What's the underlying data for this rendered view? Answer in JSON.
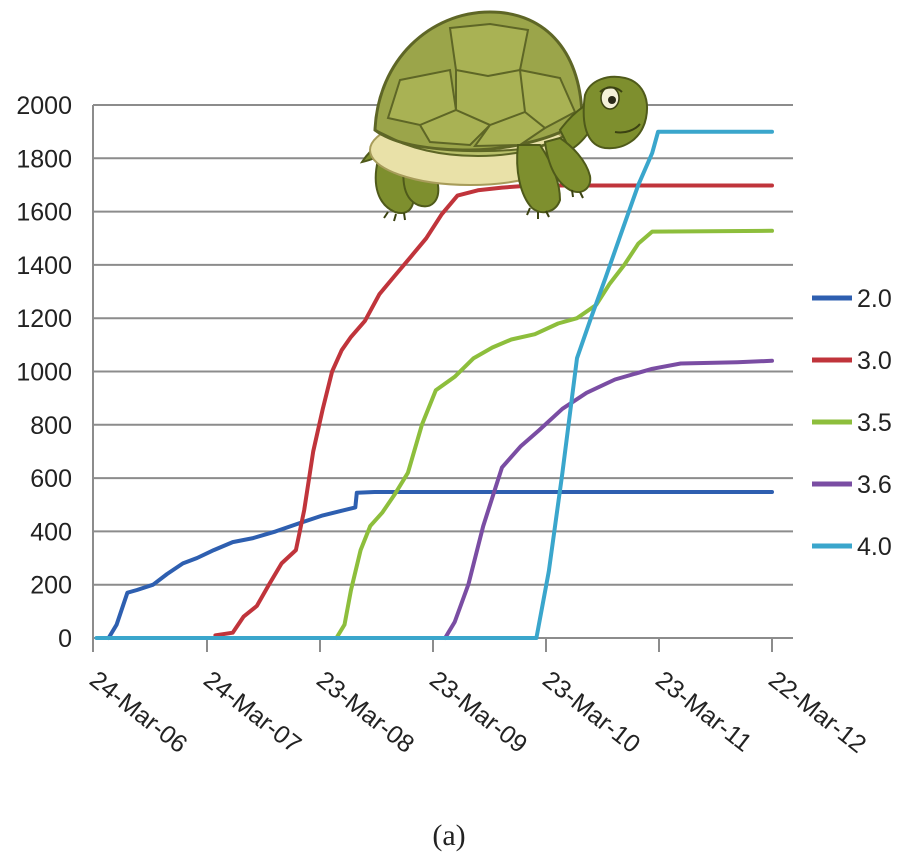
{
  "chart_data": {
    "type": "line",
    "title": "",
    "xlabel": "",
    "ylabel": "",
    "caption": "(a)",
    "ylim": [
      0,
      2000
    ],
    "y_ticks": [
      "0",
      "200",
      "400",
      "600",
      "800",
      "1000",
      "1200",
      "1400",
      "1600",
      "1800",
      "2000"
    ],
    "x_ticks": [
      "24-Mar-06",
      "24-Mar-07",
      "23-Mar-08",
      "23-Mar-09",
      "23-Mar-10",
      "23-Mar-11",
      "22-Mar-12"
    ],
    "grid": true,
    "legend_position": "right",
    "series": [
      {
        "name": "2.0",
        "color": "#2E5FB0",
        "points": [
          [
            "2006-05-10",
            0
          ],
          [
            "2006-06-05",
            50
          ],
          [
            "2006-07-10",
            170
          ],
          [
            "2006-08-10",
            180
          ],
          [
            "2006-10-01",
            200
          ],
          [
            "2006-11-15",
            240
          ],
          [
            "2007-01-05",
            280
          ],
          [
            "2007-02-20",
            300
          ],
          [
            "2007-04-15",
            330
          ],
          [
            "2007-06-15",
            360
          ],
          [
            "2007-08-20",
            375
          ],
          [
            "2007-11-01",
            400
          ],
          [
            "2008-01-15",
            430
          ],
          [
            "2008-04-01",
            460
          ],
          [
            "2008-06-10",
            480
          ],
          [
            "2008-07-15",
            490
          ],
          [
            "2008-07-20",
            545
          ],
          [
            "2008-09-15",
            548
          ],
          [
            "2012-03-22",
            548
          ]
        ]
      },
      {
        "name": "3.0",
        "color": "#C0343B",
        "points": [
          [
            "2007-04-20",
            10
          ],
          [
            "2007-06-15",
            20
          ],
          [
            "2007-07-20",
            80
          ],
          [
            "2007-09-01",
            120
          ],
          [
            "2007-10-10",
            200
          ],
          [
            "2007-11-20",
            280
          ],
          [
            "2008-01-05",
            330
          ],
          [
            "2008-02-01",
            480
          ],
          [
            "2008-03-01",
            700
          ],
          [
            "2008-04-01",
            860
          ],
          [
            "2008-05-01",
            1000
          ],
          [
            "2008-06-01",
            1080
          ],
          [
            "2008-07-01",
            1130
          ],
          [
            "2008-08-15",
            1190
          ],
          [
            "2008-10-01",
            1290
          ],
          [
            "2008-11-20",
            1360
          ],
          [
            "2009-01-10",
            1430
          ],
          [
            "2009-03-01",
            1500
          ],
          [
            "2009-04-20",
            1590
          ],
          [
            "2009-06-10",
            1660
          ],
          [
            "2009-08-15",
            1680
          ],
          [
            "2009-11-01",
            1690
          ],
          [
            "2010-02-01",
            1698
          ],
          [
            "2012-03-22",
            1698
          ]
        ]
      },
      {
        "name": "3.5",
        "color": "#8DBE3C",
        "points": [
          [
            "2008-05-15",
            0
          ],
          [
            "2008-06-10",
            50
          ],
          [
            "2008-07-01",
            180
          ],
          [
            "2008-08-01",
            330
          ],
          [
            "2008-09-01",
            420
          ],
          [
            "2008-10-10",
            470
          ],
          [
            "2008-11-20",
            540
          ],
          [
            "2009-01-01",
            620
          ],
          [
            "2009-02-15",
            800
          ],
          [
            "2009-04-01",
            930
          ],
          [
            "2009-06-01",
            980
          ],
          [
            "2009-08-01",
            1050
          ],
          [
            "2009-10-01",
            1090
          ],
          [
            "2009-12-01",
            1120
          ],
          [
            "2010-02-15",
            1140
          ],
          [
            "2010-05-01",
            1180
          ],
          [
            "2010-07-01",
            1200
          ],
          [
            "2010-09-01",
            1250
          ],
          [
            "2010-10-15",
            1330
          ],
          [
            "2010-12-01",
            1400
          ],
          [
            "2011-01-15",
            1480
          ],
          [
            "2011-03-01",
            1525
          ],
          [
            "2012-03-22",
            1528
          ]
        ]
      },
      {
        "name": "3.6",
        "color": "#7A4DA3",
        "points": [
          [
            "2009-05-01",
            0
          ],
          [
            "2009-06-01",
            60
          ],
          [
            "2009-07-15",
            200
          ],
          [
            "2009-09-01",
            420
          ],
          [
            "2009-11-01",
            640
          ],
          [
            "2010-01-01",
            720
          ],
          [
            "2010-03-01",
            780
          ],
          [
            "2010-05-15",
            860
          ],
          [
            "2010-08-01",
            920
          ],
          [
            "2010-11-01",
            970
          ],
          [
            "2011-03-01",
            1010
          ],
          [
            "2011-06-01",
            1030
          ],
          [
            "2011-12-01",
            1035
          ],
          [
            "2012-03-22",
            1040
          ]
        ]
      },
      {
        "name": "4.0",
        "color": "#3AA6CC",
        "points": [
          [
            "2006-04-01",
            0
          ],
          [
            "2010-02-20",
            0
          ],
          [
            "2010-04-01",
            250
          ],
          [
            "2010-05-15",
            620
          ],
          [
            "2010-07-01",
            1050
          ],
          [
            "2010-08-15",
            1200
          ],
          [
            "2010-10-01",
            1350
          ],
          [
            "2010-11-15",
            1500
          ],
          [
            "2011-01-15",
            1700
          ],
          [
            "2011-03-01",
            1820
          ],
          [
            "2011-03-20",
            1900
          ],
          [
            "2012-03-22",
            1900
          ]
        ]
      }
    ]
  }
}
